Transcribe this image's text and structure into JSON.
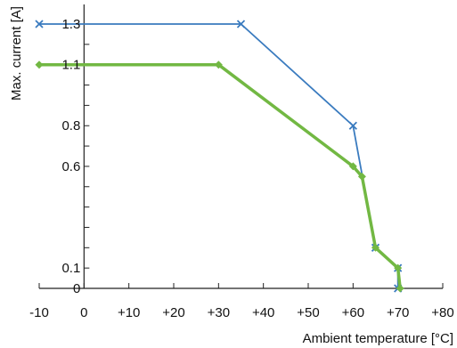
{
  "chart_data": {
    "type": "line",
    "title": "",
    "xlabel": "Ambient temperature [°C]",
    "ylabel": "Max. current [A]",
    "xlim": [
      -10,
      80
    ],
    "ylim": [
      0,
      1.3
    ],
    "x_ticks": [
      -10,
      0,
      10,
      20,
      30,
      40,
      50,
      60,
      70,
      80
    ],
    "x_tick_labels": [
      "-10",
      "0",
      "+10",
      "+20",
      "+30",
      "+40",
      "+50",
      "+60",
      "+70",
      "+80"
    ],
    "y_ticks_labeled": [
      0,
      0.1,
      0.6,
      0.8,
      1.1,
      1.3
    ],
    "y_tick_labels": [
      "0",
      "0.1",
      "0.6",
      "0.8",
      "1.1",
      "1.3"
    ],
    "y_ticks_minor_count": 13,
    "grid": false,
    "series": [
      {
        "color": "#3a7bbf",
        "marker": "x",
        "x": [
          -10,
          35,
          60,
          65,
          70,
          70
        ],
        "y": [
          1.3,
          1.3,
          0.8,
          0.2,
          0.1,
          0
        ]
      },
      {
        "color": "#72b843",
        "marker": "diamond",
        "x": [
          -10,
          30,
          60,
          62,
          65,
          70,
          70.5
        ],
        "y": [
          1.1,
          1.1,
          0.6,
          0.55,
          0.2,
          0.1,
          0
        ]
      }
    ]
  }
}
